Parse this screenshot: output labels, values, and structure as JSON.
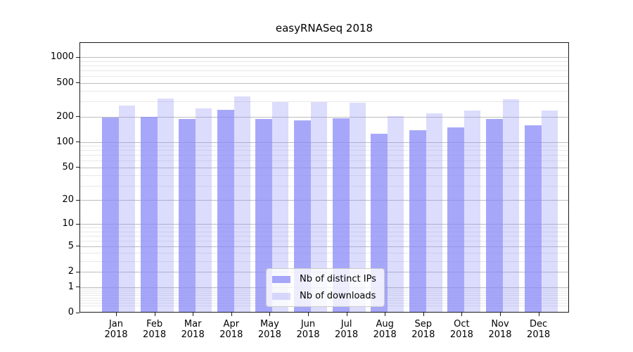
{
  "title": "easyRNASeq 2018",
  "chart_data": {
    "type": "bar",
    "categories": [
      "Jan 2018",
      "Feb 2018",
      "Mar 2018",
      "Apr 2018",
      "May 2018",
      "Jun 2018",
      "Jul 2018",
      "Aug 2018",
      "Sep 2018",
      "Oct 2018",
      "Nov 2018",
      "Dec 2018"
    ],
    "series": [
      {
        "name": "Nb of distinct IPs",
        "color": "#8a8af8",
        "opacity": 0.75,
        "values": [
          192,
          195,
          185,
          238,
          185,
          178,
          186,
          122,
          135,
          145,
          183,
          155
        ]
      },
      {
        "name": "Nb of downloads",
        "color": "#8a8af8",
        "opacity": 0.3,
        "values": [
          265,
          318,
          245,
          340,
          292,
          290,
          288,
          198,
          216,
          232,
          316,
          230
        ]
      }
    ],
    "title": "easyRNASeq 2018",
    "xlabel": "",
    "ylabel": "",
    "yscale": "log1p",
    "ylim": [
      0,
      1500
    ],
    "yticks": [
      0,
      1,
      2,
      5,
      10,
      20,
      50,
      100,
      200,
      500,
      1000
    ],
    "yticks_minor": [
      0.2,
      0.3,
      0.4,
      0.5,
      0.6,
      0.7,
      0.8,
      0.9,
      3,
      4,
      6,
      7,
      8,
      9,
      30,
      40,
      60,
      70,
      80,
      90,
      300,
      400,
      600,
      700,
      800,
      900
    ],
    "grid": true,
    "legend_position": "lower center"
  }
}
